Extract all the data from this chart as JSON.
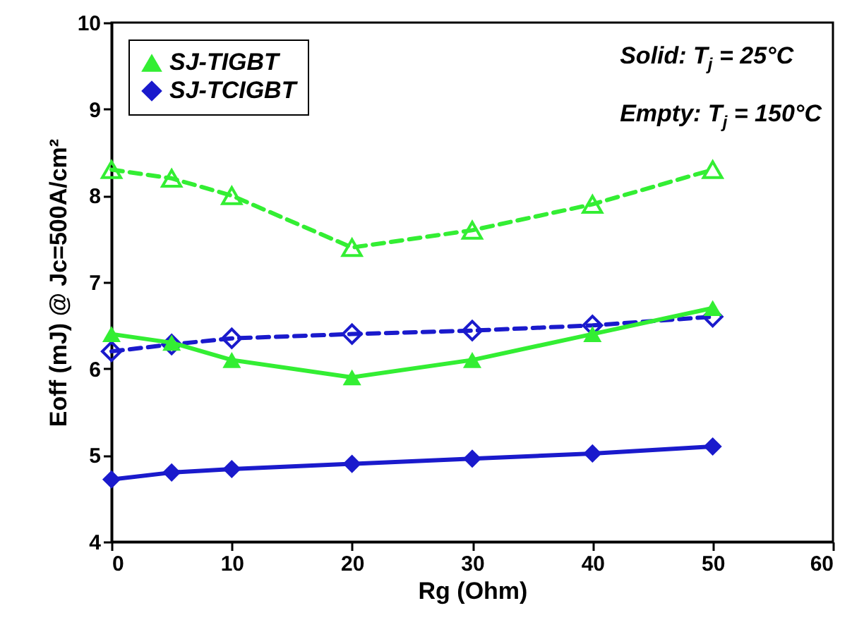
{
  "chart_data": {
    "type": "line",
    "xlabel": "Rg (Ohm)",
    "ylabel": "Eoff (mJ) @ Jc=500A/cm²",
    "x": [
      0,
      5,
      10,
      20,
      30,
      40,
      50
    ],
    "series": [
      {
        "name": "SJ-TIGBT",
        "color": "#33ee33",
        "marker": "triangle",
        "line_style": "solid",
        "values": [
          6.4,
          6.3,
          6.1,
          5.9,
          6.1,
          6.4,
          6.7
        ]
      },
      {
        "name": "SJ-TCIGBT",
        "color": "#1a1acc",
        "marker": "diamond",
        "line_style": "solid",
        "values": [
          4.72,
          4.8,
          4.84,
          4.9,
          4.96,
          5.02,
          5.1
        ]
      },
      {
        "color": "#33ee33",
        "marker": "triangle",
        "line_style": "dashed",
        "values": [
          8.3,
          8.2,
          8.0,
          7.4,
          7.6,
          7.9,
          8.3
        ]
      },
      {
        "color": "#1a1acc",
        "marker": "diamond",
        "line_style": "dashed",
        "values": [
          6.2,
          6.28,
          6.35,
          6.4,
          6.44,
          6.5,
          6.6
        ]
      }
    ],
    "xlim": [
      0,
      60
    ],
    "xticks": [
      0,
      10,
      20,
      30,
      40,
      50,
      60
    ],
    "ylim": [
      4,
      10
    ],
    "yticks": [
      4,
      5,
      6,
      7,
      8,
      9,
      10
    ],
    "legend": "top left",
    "grid": false,
    "annotations": [
      "Solid: T$_{j}$ = 25°C",
      "Empty: T$_{j}$ = 150°C"
    ]
  }
}
